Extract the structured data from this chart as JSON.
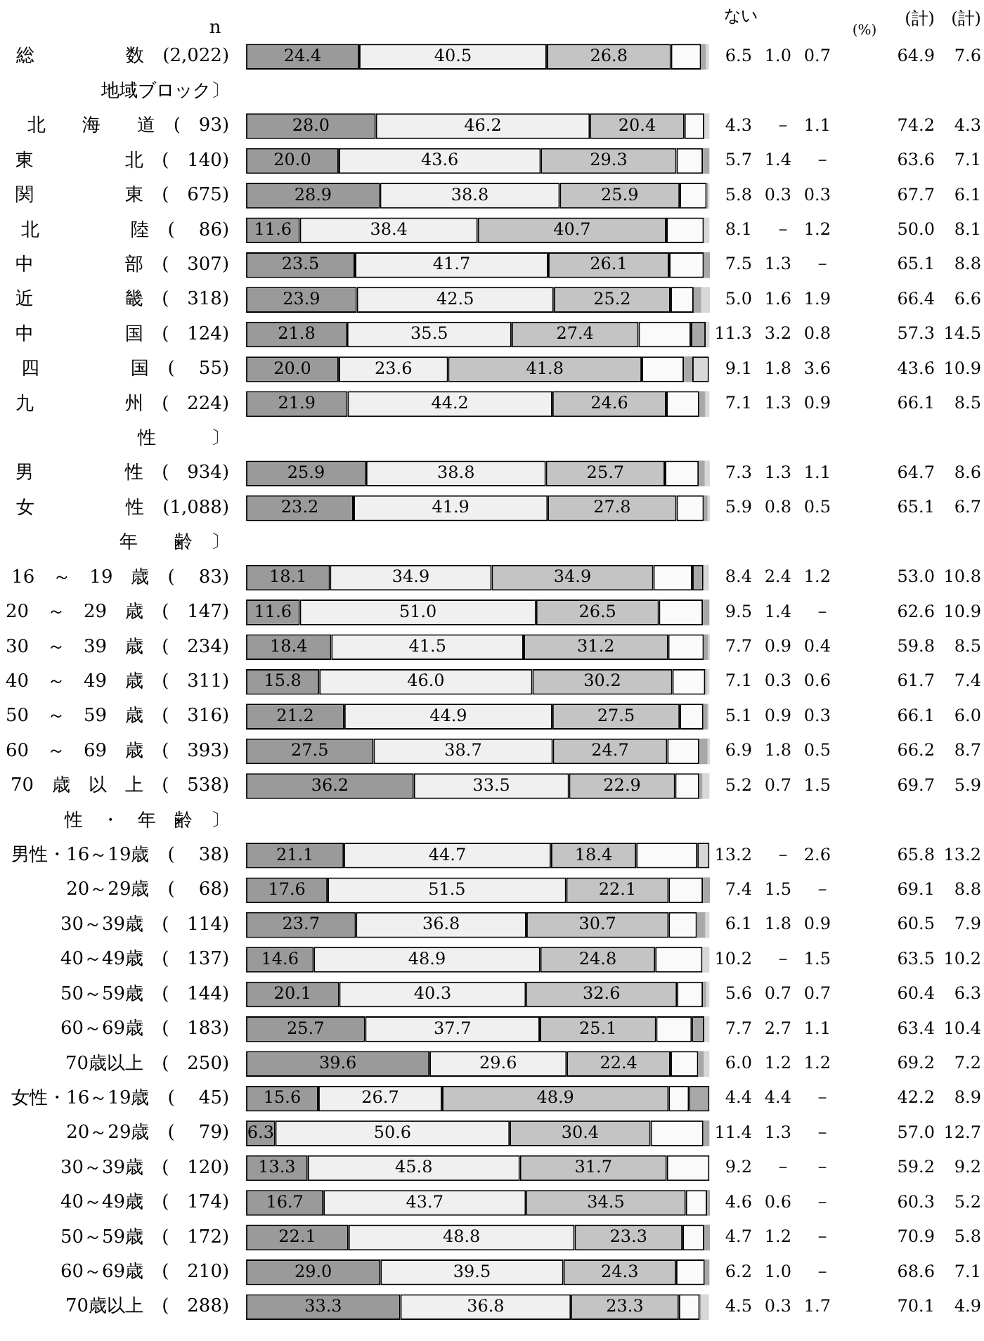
{
  "chart_data": {
    "type": "bar",
    "orientation": "horizontal",
    "stacked": true,
    "tick_labels": "y",
    "legend": false,
    "categories": [
      "総　　　　　数　(2,022)",
      "地域ブロック〕",
      "北　　海　　道　(　93)",
      "東　　　　　北　(　140)",
      "関　　　　　東　(　675)",
      "北　　　　　陸　(　 86)",
      "中　　　　　部　(　307)",
      "近　　　　　畿　(　318)",
      "中　　　　　国　(　124)",
      "四　　　　　国　(　 55)",
      "九　　　　　州　(　224)",
      "　　性　　　〕",
      "男　　　　　性　(　934)",
      "女　　　　　性　(1,088)",
      "　　年　　齢　〕",
      "16　～　19　歳　(　 83)",
      "20　～　29　歳　(　147)",
      "30　～　39　歳　(　234)",
      "40　～　49　歳　(　311)",
      "50　～　59　歳　(　316)",
      "60　～　69　歳　(　393)",
      "70　歳　以　上　(　538)",
      "　性　・　年　齢　〕",
      "男性・16～19歳　(　 38)",
      "　　　20～29歳　(　 68)",
      "　　　30～39歳　(　114)",
      "　　　40～49歳　(　137)",
      "　　　50～59歳　(　144)",
      "　　　60～69歳　(　183)",
      "　　　70歳以上　(　250)",
      "女性・16～19歳　(　 45)",
      "　　　20～29歳　(　 79)",
      "　　　30～39歳　(　120)",
      "　　　40～49歳　(　174)",
      "　　　50～59歳　(　172)",
      "　　　60～69歳　(　210)",
      "　　　70歳以上　(　288)"
    ],
    "series": [
      {
        "color": "#9a9a9a",
        "values": [
          24.4,
          null,
          28.0,
          20.0,
          28.9,
          11.6,
          23.5,
          23.9,
          21.8,
          20.0,
          21.9,
          null,
          25.9,
          23.2,
          null,
          18.1,
          11.6,
          18.4,
          15.8,
          21.2,
          27.5,
          36.2,
          null,
          21.1,
          17.6,
          23.7,
          14.6,
          20.1,
          25.7,
          39.6,
          15.6,
          6.3,
          13.3,
          16.7,
          22.1,
          29.0,
          33.3
        ],
        "value_labels": [
          "24.4",
          null,
          "28.0",
          "20.0",
          "28.9",
          "11.6",
          "23.5",
          "23.9",
          "21.8",
          "20.0",
          "21.9",
          null,
          "25.9",
          "23.2",
          null,
          "18.1",
          "11.6",
          "18.4",
          "15.8",
          "21.2",
          "27.5",
          "36.2",
          null,
          "21.1",
          "17.6",
          "23.7",
          "14.6",
          "20.1",
          "25.7",
          "39.6",
          "15.6",
          "6.3",
          "13.3",
          "16.7",
          "22.1",
          "29.0",
          "33.3"
        ]
      },
      {
        "color": "#f0f0f0",
        "values": [
          40.5,
          null,
          46.2,
          43.6,
          38.8,
          38.4,
          41.7,
          42.5,
          35.5,
          23.6,
          44.2,
          null,
          38.8,
          41.9,
          null,
          34.9,
          51.0,
          41.5,
          46.0,
          44.9,
          38.7,
          33.5,
          null,
          44.7,
          51.5,
          36.8,
          48.9,
          40.3,
          37.7,
          29.6,
          26.7,
          50.6,
          45.8,
          43.7,
          48.8,
          39.5,
          36.8
        ],
        "value_labels": [
          "40.5",
          null,
          "46.2",
          "43.6",
          "38.8",
          "38.4",
          "41.7",
          "42.5",
          "35.5",
          "23.6",
          "44.2",
          null,
          "38.8",
          "41.9",
          null,
          "34.9",
          "51.0",
          "41.5",
          "46.0",
          "44.9",
          "38.7",
          "33.5",
          null,
          "44.7",
          "51.5",
          "36.8",
          "48.9",
          "40.3",
          "37.7",
          "29.6",
          "26.7",
          "50.6",
          "45.8",
          "43.7",
          "48.8",
          "39.5",
          "36.8"
        ]
      },
      {
        "color": "#c4c4c4",
        "values": [
          26.8,
          null,
          20.4,
          29.3,
          25.9,
          40.7,
          26.1,
          25.2,
          27.4,
          41.8,
          24.6,
          null,
          25.7,
          27.8,
          null,
          34.9,
          26.5,
          31.2,
          30.2,
          27.5,
          24.7,
          22.9,
          null,
          18.4,
          22.1,
          30.7,
          24.8,
          32.6,
          25.1,
          22.4,
          48.9,
          30.4,
          31.7,
          34.5,
          23.3,
          24.3,
          23.3
        ],
        "value_labels": [
          "26.8",
          null,
          "20.4",
          "29.3",
          "25.9",
          "40.7",
          "26.1",
          "25.2",
          "27.4",
          "41.8",
          "24.6",
          null,
          "25.7",
          "27.8",
          null,
          "34.9",
          "26.5",
          "31.2",
          "30.2",
          "27.5",
          "24.7",
          "22.9",
          null,
          "18.4",
          "22.1",
          "30.7",
          "24.8",
          "32.6",
          "25.1",
          "22.4",
          "48.9",
          "30.4",
          "31.7",
          "34.5",
          "23.3",
          "24.3",
          "23.3"
        ]
      },
      {
        "name": "ない",
        "color": "#fafafa",
        "values": [
          6.5,
          null,
          4.3,
          5.7,
          5.8,
          8.1,
          7.5,
          5.0,
          11.3,
          9.1,
          7.1,
          null,
          7.3,
          5.9,
          null,
          8.4,
          9.5,
          7.7,
          7.1,
          5.1,
          6.9,
          5.2,
          null,
          13.2,
          7.4,
          6.1,
          10.2,
          5.6,
          7.7,
          6.0,
          4.4,
          11.4,
          9.2,
          4.6,
          4.7,
          6.2,
          4.5
        ],
        "value_labels": [
          "6.5",
          null,
          "4.3",
          "5.7",
          "5.8",
          "8.1",
          "7.5",
          "5.0",
          "11.3",
          "9.1",
          "7.1",
          null,
          "7.3",
          "5.9",
          null,
          "8.4",
          "9.5",
          "7.7",
          "7.1",
          "5.1",
          "6.9",
          "5.2",
          null,
          "13.2",
          "7.4",
          "6.1",
          "10.2",
          "5.6",
          "7.7",
          "6.0",
          "4.4",
          "11.4",
          "9.2",
          "4.6",
          "4.7",
          "6.2",
          "4.5"
        ]
      },
      {
        "color": "#a8a8a8",
        "values": [
          1.0,
          null,
          0,
          1.4,
          0.3,
          0,
          1.3,
          1.6,
          3.2,
          1.8,
          1.3,
          null,
          1.3,
          0.8,
          null,
          2.4,
          1.4,
          0.9,
          0.3,
          0.9,
          1.8,
          0.7,
          null,
          0,
          1.5,
          1.8,
          0,
          0.7,
          2.7,
          1.2,
          4.4,
          1.3,
          0,
          0.6,
          1.2,
          1.0,
          0.3
        ],
        "value_labels": [
          "1.0",
          null,
          "－",
          "1.4",
          "0.3",
          "－",
          "1.3",
          "1.6",
          "3.2",
          "1.8",
          "1.3",
          null,
          "1.3",
          "0.8",
          null,
          "2.4",
          "1.4",
          "0.9",
          "0.3",
          "0.9",
          "1.8",
          "0.7",
          null,
          "－",
          "1.5",
          "1.8",
          "－",
          "0.7",
          "2.7",
          "1.2",
          "4.4",
          "1.3",
          "－",
          "0.6",
          "1.2",
          "1.0",
          "0.3"
        ]
      },
      {
        "color": "#d8d8d8",
        "values": [
          0.7,
          null,
          1.1,
          0,
          0.3,
          1.2,
          0,
          1.9,
          0.8,
          3.6,
          0.9,
          null,
          1.1,
          0.5,
          null,
          1.2,
          0,
          0.4,
          0.6,
          0.3,
          0.5,
          1.5,
          null,
          2.6,
          0,
          0.9,
          1.5,
          0.7,
          1.1,
          1.2,
          0,
          0,
          0,
          0,
          0,
          0,
          1.7
        ],
        "value_labels": [
          "0.7",
          null,
          "1.1",
          "－",
          "0.3",
          "1.2",
          "－",
          "1.9",
          "0.8",
          "3.6",
          "0.9",
          null,
          "1.1",
          "0.5",
          null,
          "1.2",
          "－",
          "0.4",
          "0.6",
          "0.3",
          "0.5",
          "1.5",
          null,
          "2.6",
          "－",
          "0.9",
          "1.5",
          "0.7",
          "1.1",
          "1.2",
          "－",
          "－",
          "－",
          "－",
          "－",
          "－",
          "1.7"
        ]
      }
    ],
    "annotations": [
      "n",
      "(%)",
      "(計)",
      "(計)",
      "64.9",
      "7.6",
      "74.2",
      "4.3",
      "63.6",
      "7.1",
      "67.7",
      "6.1",
      "50.0",
      "8.1",
      "65.1",
      "8.8",
      "66.4",
      "6.6",
      "57.3",
      "14.5",
      "43.6",
      "10.9",
      "66.1",
      "8.5",
      "64.7",
      "8.6",
      "65.1",
      "6.7",
      "53.0",
      "10.8",
      "62.6",
      "10.9",
      "59.8",
      "8.5",
      "61.7",
      "7.4",
      "66.1",
      "6.0",
      "66.2",
      "8.7",
      "69.7",
      "5.9",
      "65.8",
      "13.2",
      "69.1",
      "8.8",
      "60.5",
      "7.9",
      "63.5",
      "10.2",
      "60.4",
      "6.3",
      "63.4",
      "10.4",
      "69.2",
      "7.2",
      "42.2",
      "8.9",
      "57.0",
      "12.7",
      "59.2",
      "9.2",
      "60.3",
      "5.2",
      "70.9",
      "5.8",
      "68.6",
      "7.1",
      "70.1",
      "4.9"
    ]
  }
}
